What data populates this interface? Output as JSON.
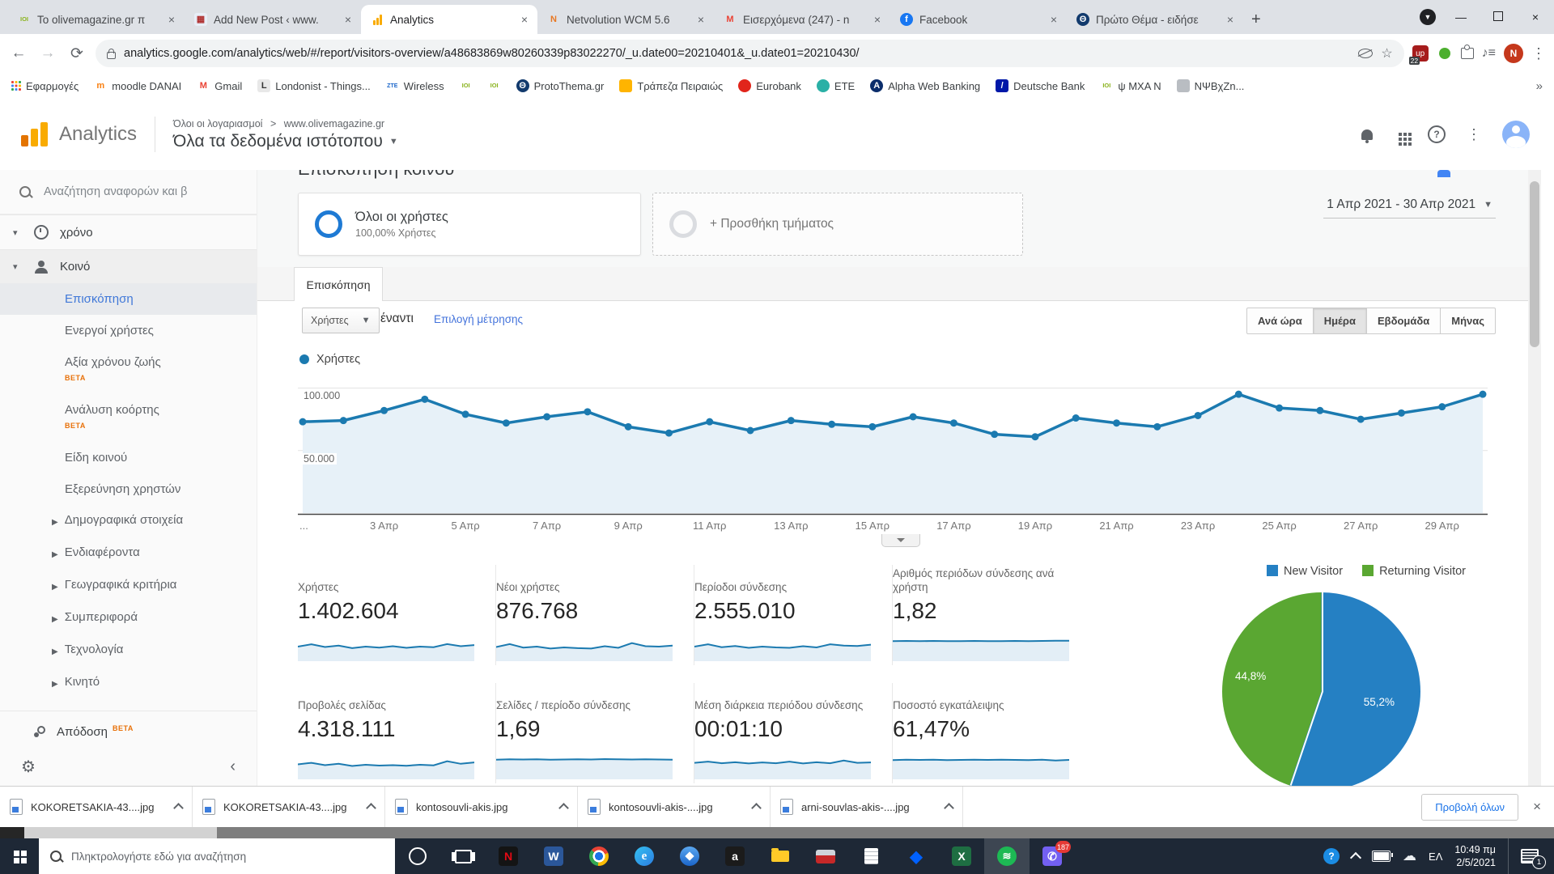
{
  "accent": {
    "ga_orange": "#f9ab00",
    "link_blue": "#4272db",
    "line_blue": "#1b7ab0"
  },
  "browser": {
    "tabs": [
      {
        "title": "Το olivemagazine.gr π",
        "icon": "olive",
        "glyph": "ΙΟΙ",
        "fg": "#8ab31e",
        "bg": "transparent",
        "active": false
      },
      {
        "title": "Add New Post ‹ www.",
        "icon": "wordpress-post",
        "glyph": "▦",
        "fg": "#b03030",
        "bg": "#e8eef7",
        "active": false
      },
      {
        "title": "Analytics",
        "icon": "analytics",
        "glyph": "bars",
        "fg": "#f9ab00",
        "bg": "transparent",
        "active": true
      },
      {
        "title": "Netvolution WCM 5.6",
        "icon": "netvolution",
        "glyph": "N",
        "fg": "#e87722",
        "bg": "transparent",
        "active": false
      },
      {
        "title": "Εισερχόμενα (247) - n",
        "icon": "gmail",
        "glyph": "M",
        "fg": "#ea4335",
        "bg": "transparent",
        "active": false
      },
      {
        "title": "Facebook",
        "icon": "facebook",
        "glyph": "f",
        "fg": "#ffffff",
        "bg": "#1877f2",
        "round": true,
        "active": false
      },
      {
        "title": "Πρώτο Θέμα - ειδήσε",
        "icon": "protothema",
        "glyph": "Θ",
        "fg": "#ffffff",
        "bg": "#123a6d",
        "round": true,
        "active": false
      }
    ],
    "url": "analytics.google.com/analytics/web/#/report/visitors-overview/a48683869w80260339p83022270/_u.date00=20210401&_u.date01=20210430/",
    "extension_badge": "22",
    "profile_initial": "N",
    "bookmarks": [
      {
        "label": "Εφαρμογές",
        "icon": "apps-grid",
        "glyph": "grid"
      },
      {
        "label": "moodle DANAI",
        "icon": "moodle",
        "glyph": "m",
        "fg": "#f98012",
        "bg": "transparent"
      },
      {
        "label": "Gmail",
        "icon": "gmail",
        "glyph": "M",
        "fg": "#ea4335",
        "bg": "transparent"
      },
      {
        "label": "Londonist - Things...",
        "icon": "londonist",
        "glyph": "L",
        "fg": "#333333",
        "bg": "#e8e8e8"
      },
      {
        "label": "Wireless",
        "icon": "zte",
        "glyph": "ZTE",
        "fg": "#1b66c9",
        "bg": "transparent"
      },
      {
        "label": "",
        "icon": "olive",
        "glyph": "ΙΟΙ",
        "fg": "#8ab31e",
        "bg": "transparent"
      },
      {
        "label": "",
        "icon": "olive",
        "glyph": "ΙΟΙ",
        "fg": "#8ab31e",
        "bg": "transparent"
      },
      {
        "label": "ProtoThema.gr",
        "icon": "protothema",
        "glyph": "Θ",
        "fg": "#ffffff",
        "bg": "#123a6d",
        "round": true
      },
      {
        "label": "Τράπεζα Πειραιώς",
        "icon": "piraeus",
        "glyph": "",
        "fg": "#ffffff",
        "bg": "#ffb400"
      },
      {
        "label": "Eurobank",
        "icon": "eurobank",
        "glyph": "",
        "fg": "#ffffff",
        "bg": "#e1251b",
        "round": true
      },
      {
        "label": "ETE",
        "icon": "ete",
        "glyph": "",
        "fg": "#ffffff",
        "bg": "#2ab0a6",
        "round": true
      },
      {
        "label": "Alpha Web Banking",
        "icon": "alpha-bank",
        "glyph": "Α",
        "fg": "#ffffff",
        "bg": "#0b2d6b",
        "round": true
      },
      {
        "label": "Deutsche Bank",
        "icon": "deutsche-bank",
        "glyph": "/",
        "fg": "#ffffff",
        "bg": "#0018a8"
      },
      {
        "label": "ψ ΜΧΑ Ν",
        "icon": "olive",
        "glyph": "ΙΟΙ",
        "fg": "#8ab31e",
        "bg": "transparent"
      },
      {
        "label": "ΝΨΒχΖn...",
        "icon": "generic",
        "glyph": "",
        "fg": "#ffffff",
        "bg": "#b9bdc2"
      }
    ],
    "overflow_chevron": "»"
  },
  "ga": {
    "product": "Analytics",
    "breadcrumb": {
      "accounts": "Όλοι οι λογαριασμοί",
      "sep": ">",
      "site": "www.olivemagazine.gr"
    },
    "property_title": "Όλα τα δεδομένα ιστότοπου",
    "page_title_clipped": "Επισκόπηση κοινού"
  },
  "sidebar": {
    "search_placeholder": "Αναζήτηση αναφορών και β",
    "nav": [
      {
        "type": "partial",
        "label": "χρόνο",
        "icon": "clock-icon"
      },
      {
        "type": "section",
        "label": "Κοινό",
        "icon": "person-icon"
      },
      {
        "type": "sub",
        "label": "Επισκόπηση",
        "selected": true
      },
      {
        "type": "sub",
        "label": "Ενεργοί χρήστες"
      },
      {
        "type": "sub",
        "label": "Αξία χρόνου ζωής",
        "beta": "BETA"
      },
      {
        "type": "sub",
        "label": "Ανάλυση κοόρτης",
        "beta": "BETA"
      },
      {
        "type": "sub",
        "label": "Είδη κοινού"
      },
      {
        "type": "sub",
        "label": "Εξερεύνηση χρηστών"
      },
      {
        "type": "group",
        "label": "Δημογραφικά στοιχεία"
      },
      {
        "type": "group",
        "label": "Ενδιαφέροντα"
      },
      {
        "type": "group",
        "label": "Γεωγραφικά κριτήρια"
      },
      {
        "type": "group",
        "label": "Συμπεριφορά"
      },
      {
        "type": "group",
        "label": "Τεχνολογία"
      },
      {
        "type": "group",
        "label": "Κινητό"
      },
      {
        "type": "section2",
        "label": "Απόδοση",
        "beta": "BETA",
        "icon": "attribution-icon"
      }
    ]
  },
  "segments": {
    "all_users": {
      "title": "Όλοι οι χρήστες",
      "subtitle": "100,00% Χρήστες"
    },
    "add_segment": "+ Προσθήκη τμήματος"
  },
  "daterange": "1 Απρ 2021 - 30 Απρ 2021",
  "report": {
    "tab": "Επισκόπηση",
    "metric_select": "Χρήστες",
    "vs_label": "έναντι",
    "select_metric_link": "Επιλογή μέτρησης",
    "granularity": {
      "options": [
        "Ανά ώρα",
        "Ημέρα",
        "Εβδομάδα",
        "Μήνας"
      ],
      "selected": 1
    }
  },
  "chart_data": [
    {
      "type": "line",
      "title": "Χρήστες",
      "series": [
        {
          "name": "Χρήστες",
          "values": [
            73000,
            74000,
            82000,
            91000,
            79000,
            72000,
            77000,
            81000,
            69000,
            64000,
            73000,
            66000,
            74000,
            71000,
            69000,
            77000,
            72000,
            63000,
            61000,
            76000,
            72000,
            69000,
            78000,
            95000,
            84000,
            82000,
            75000,
            80000,
            85000,
            95000
          ]
        }
      ],
      "x": [
        "1 Απρ",
        "2 Απρ",
        "3 Απρ",
        "4 Απρ",
        "5 Απρ",
        "6 Απρ",
        "7 Απρ",
        "8 Απρ",
        "9 Απρ",
        "10 Απρ",
        "11 Απρ",
        "12 Απρ",
        "13 Απρ",
        "14 Απρ",
        "15 Απρ",
        "16 Απρ",
        "17 Απρ",
        "18 Απρ",
        "19 Απρ",
        "20 Απρ",
        "21 Απρ",
        "22 Απρ",
        "23 Απρ",
        "24 Απρ",
        "25 Απρ",
        "26 Απρ",
        "27 Απρ",
        "28 Απρ",
        "29 Απρ",
        "30 Απρ"
      ],
      "x_tick_labels": [
        "...",
        "3 Απρ",
        "5 Απρ",
        "7 Απρ",
        "9 Απρ",
        "11 Απρ",
        "13 Απρ",
        "15 Απρ",
        "17 Απρ",
        "19 Απρ",
        "21 Απρ",
        "23 Απρ",
        "25 Απρ",
        "27 Απρ",
        "29 Απρ"
      ],
      "y_ticks": [
        {
          "value": 100000,
          "label": "100.000"
        },
        {
          "value": 50000,
          "label": "50.000"
        }
      ],
      "ylim": [
        0,
        110000
      ],
      "line_color": "#1b7ab0",
      "fill_color": "#e7f1f8",
      "grid": true
    },
    {
      "type": "pie",
      "labels": [
        "New Visitor",
        "Returning Visitor"
      ],
      "values": [
        55.2,
        44.8
      ],
      "display_labels": [
        "55,2%",
        "44,8%"
      ],
      "colors": [
        "#2580c3",
        "#5aa732"
      ],
      "legend_position": "top"
    }
  ],
  "metrics": [
    {
      "label": "Χρήστες",
      "value": "1.402.604",
      "spark": [
        0.5,
        0.62,
        0.48,
        0.55,
        0.42,
        0.5,
        0.45,
        0.52,
        0.44,
        0.5,
        0.47,
        0.63,
        0.52,
        0.58
      ]
    },
    {
      "label": "Νέοι χρήστες",
      "value": "876.768",
      "spark": [
        0.48,
        0.63,
        0.45,
        0.5,
        0.4,
        0.46,
        0.42,
        0.4,
        0.52,
        0.44,
        0.68,
        0.52,
        0.5,
        0.55
      ]
    },
    {
      "label": "Περίοδοι σύνδεσης",
      "value": "2.555.010",
      "spark": [
        0.5,
        0.62,
        0.47,
        0.53,
        0.44,
        0.5,
        0.46,
        0.44,
        0.52,
        0.46,
        0.62,
        0.55,
        0.53,
        0.6
      ]
    },
    {
      "label": "Αριθμός περιόδων σύνδεσης ανά χρήστη",
      "value": "1,82",
      "spark": [
        0.78,
        0.79,
        0.78,
        0.79,
        0.78,
        0.78,
        0.79,
        0.78,
        0.78,
        0.79,
        0.78,
        0.79,
        0.8,
        0.8
      ]
    },
    {
      "label": "Προβολές σελίδας",
      "value": "4.318.111",
      "spark": [
        0.52,
        0.6,
        0.48,
        0.55,
        0.44,
        0.5,
        0.46,
        0.48,
        0.45,
        0.5,
        0.47,
        0.68,
        0.55,
        0.62
      ]
    },
    {
      "label": "Σελίδες / περίοδο σύνδεσης",
      "value": "1,69",
      "spark": [
        0.76,
        0.78,
        0.77,
        0.78,
        0.76,
        0.77,
        0.78,
        0.77,
        0.79,
        0.78,
        0.77,
        0.78,
        0.77,
        0.76
      ]
    },
    {
      "label": "Μέση διάρκεια περιόδου σύνδεσης",
      "value": "00:01:10",
      "spark": [
        0.6,
        0.66,
        0.58,
        0.63,
        0.57,
        0.62,
        0.58,
        0.66,
        0.57,
        0.63,
        0.58,
        0.72,
        0.6,
        0.62
      ]
    },
    {
      "label": "Ποσοστό εγκατάλειψης",
      "value": "61,47%",
      "spark": [
        0.74,
        0.76,
        0.75,
        0.76,
        0.74,
        0.75,
        0.76,
        0.75,
        0.76,
        0.75,
        0.74,
        0.76,
        0.72,
        0.75
      ]
    }
  ],
  "downloads": {
    "items": [
      "KOKORETSAKIA-43....jpg",
      "KOKORETSAKIA-43....jpg",
      "kontosouvli-akis.jpg",
      "kontosouvli-akis-....jpg",
      "arni-souvlas-akis-....jpg"
    ],
    "view_all": "Προβολή όλων"
  },
  "taskbar": {
    "search_placeholder": "Πληκτρολογήστε εδώ για αναζήτηση",
    "apps": [
      {
        "name": "cortana-icon",
        "style": "ring"
      },
      {
        "name": "task-view-icon",
        "style": "taskview"
      },
      {
        "name": "netflix-icon",
        "glyph": "N",
        "bg": "#141414",
        "fg": "#e50914"
      },
      {
        "name": "word-icon",
        "glyph": "W",
        "bg": "#2b579a",
        "fg": "#ffffff"
      },
      {
        "name": "chrome-icon",
        "style": "chrome"
      },
      {
        "name": "edge-icon",
        "style": "edge",
        "glyph": "e"
      },
      {
        "name": "compass-icon",
        "style": "compass"
      },
      {
        "name": "amazon-icon",
        "glyph": "a",
        "bg": "#1b1b1b",
        "fg": "#ffffff"
      },
      {
        "name": "file-explorer-icon",
        "style": "folder"
      },
      {
        "name": "car-app-icon",
        "style": "car"
      },
      {
        "name": "notepad-icon",
        "style": "note"
      },
      {
        "name": "dropbox-icon",
        "glyph": "◆",
        "bg": "transparent",
        "fg": "#0061ff"
      },
      {
        "name": "excel-icon",
        "glyph": "X",
        "bg": "#1e6e42",
        "fg": "#ffffff"
      },
      {
        "name": "spotify-icon",
        "style": "spotify",
        "glyph": "≋",
        "active": true
      },
      {
        "name": "viber-icon",
        "glyph": "✆",
        "bg": "#7360f2",
        "fg": "#ffffff",
        "badge": "187"
      }
    ],
    "tray": {
      "lang": "ΕΛ",
      "time": "10:49 πμ",
      "date": "2/5/2021",
      "notification_badge": "1"
    }
  }
}
